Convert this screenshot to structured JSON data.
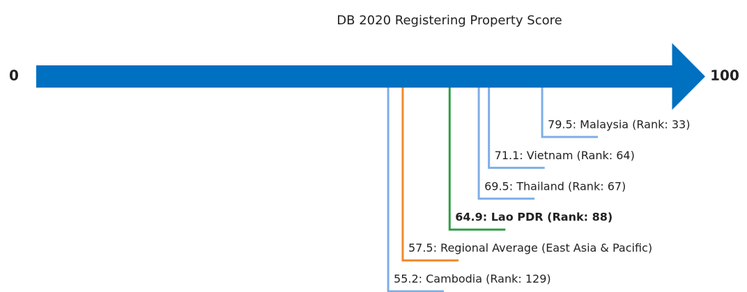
{
  "chart_data": {
    "type": "number-line",
    "title": "DB 2020 Registering Property Score",
    "xlim": [
      0,
      100
    ],
    "xticks": [
      0,
      100
    ],
    "axis_color": "#0070c0",
    "markers": [
      {
        "value": 79.5,
        "label": "79.5: Malaysia (Rank: 33)",
        "color": "#7eaee6",
        "bold": false
      },
      {
        "value": 71.1,
        "label": "71.1: Vietnam (Rank: 64)",
        "color": "#7eaee6",
        "bold": false
      },
      {
        "value": 69.5,
        "label": "69.5: Thailand (Rank: 67)",
        "color": "#7eaee6",
        "bold": false
      },
      {
        "value": 64.9,
        "label": "64.9: Lao PDR (Rank: 88)",
        "color": "#2e9e45",
        "bold": true
      },
      {
        "value": 57.5,
        "label": "57.5: Regional Average (East Asia & Pacific)",
        "color": "#ef8a2e",
        "bold": false
      },
      {
        "value": 55.2,
        "label": "55.2: Cambodia (Rank: 129)",
        "color": "#7eaee6",
        "bold": false
      }
    ]
  }
}
